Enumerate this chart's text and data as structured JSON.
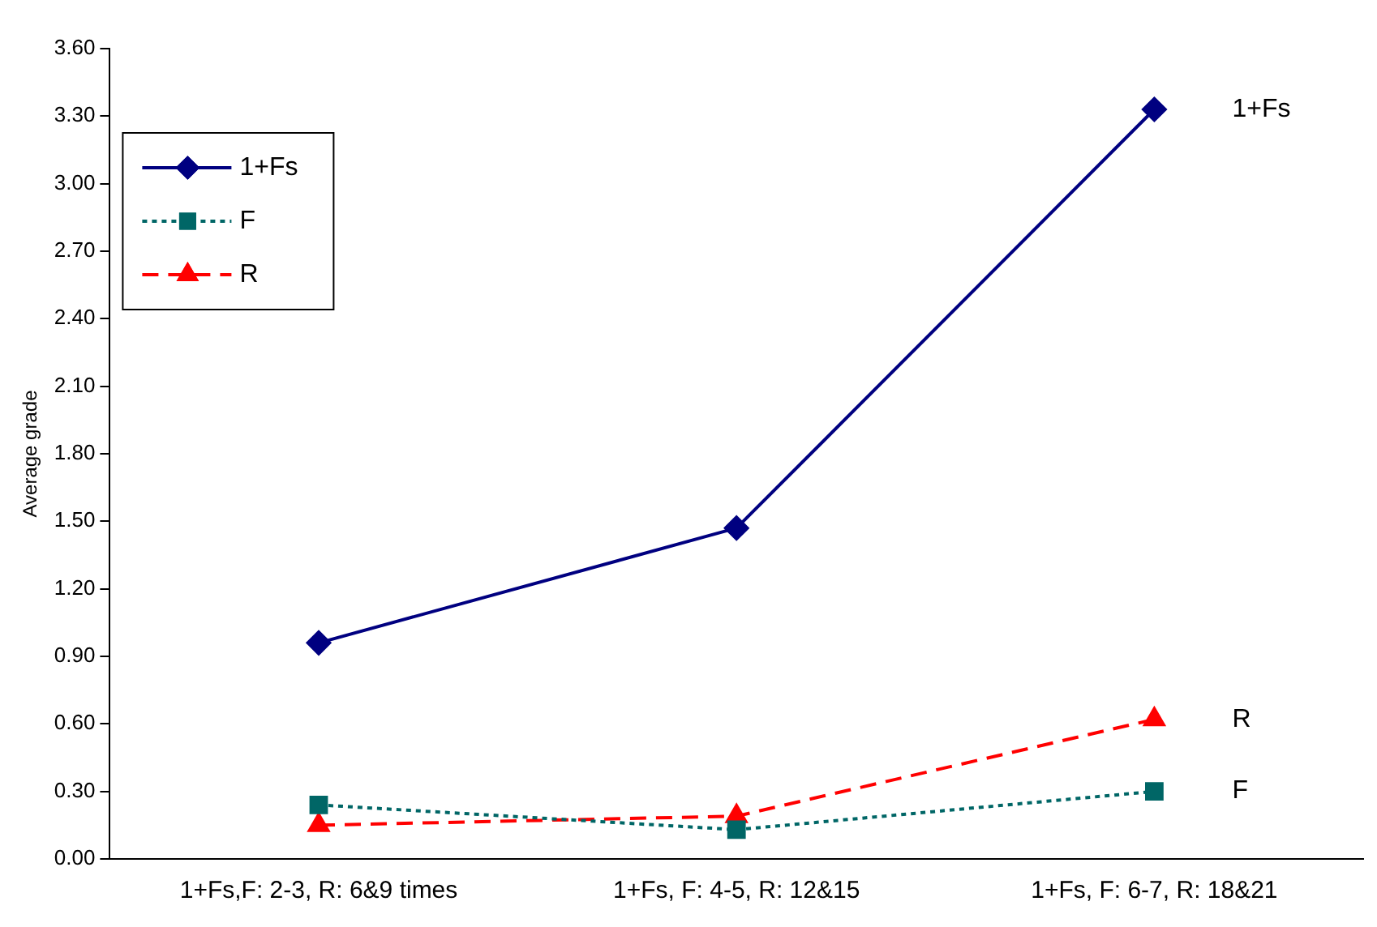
{
  "chart_data": {
    "type": "line",
    "ylabel": "Average grade",
    "categories": [
      "1+Fs,F: 2-3, R: 6&9 times",
      "1+Fs, F: 4-5, R: 12&15",
      "1+Fs, F: 6-7, R: 18&21"
    ],
    "series": [
      {
        "name": "1+Fs",
        "color": "#000080",
        "values": [
          0.96,
          1.47,
          3.33
        ],
        "marker": "diamond",
        "line_style": "solid"
      },
      {
        "name": "F",
        "color": "#006666",
        "values": [
          0.24,
          0.13,
          0.3
        ],
        "marker": "square",
        "line_style": "dotted"
      },
      {
        "name": "R",
        "color": "#ff0000",
        "values": [
          0.15,
          0.19,
          0.62
        ],
        "marker": "triangle",
        "line_style": "dashed"
      }
    ],
    "ylim": [
      0,
      3.6
    ],
    "yticks": [
      {
        "value": 0,
        "label": "0.00"
      },
      {
        "value": 0.3,
        "label": "0.30"
      },
      {
        "value": 0.6,
        "label": "0.60"
      },
      {
        "value": 0.9,
        "label": "0.90"
      },
      {
        "value": 1.2,
        "label": "1.20"
      },
      {
        "value": 1.5,
        "label": "1.50"
      },
      {
        "value": 1.8,
        "label": "1.80"
      },
      {
        "value": 2.1,
        "label": "2.10"
      },
      {
        "value": 2.4,
        "label": "2.40"
      },
      {
        "value": 2.7,
        "label": "2.70"
      },
      {
        "value": 3.0,
        "label": "3.00"
      },
      {
        "value": 3.3,
        "label": "3.30"
      },
      {
        "value": 3.6,
        "label": "3.60"
      }
    ],
    "grid": false,
    "legend": "top left",
    "annotations": [
      {
        "text": "1+Fs",
        "x": "1+Fs, F: 6-7, R: 18&21",
        "y": 3.33
      },
      {
        "text": "R",
        "x": "1+Fs, F: 6-7, R: 18&21",
        "y": 0.62
      },
      {
        "text": "F",
        "x": "1+Fs, F: 6-7, R: 18&21",
        "y": 0.3
      }
    ]
  }
}
